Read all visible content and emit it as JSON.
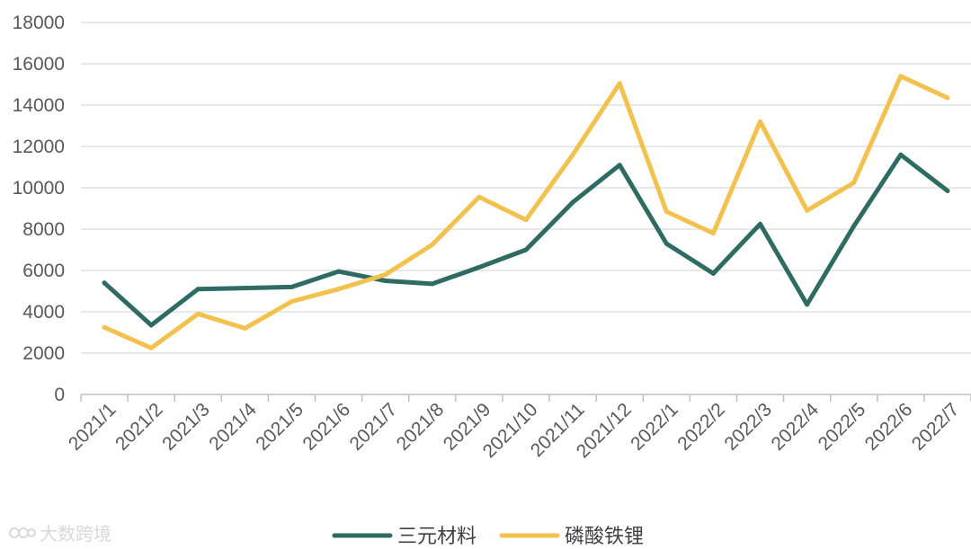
{
  "chart_data": {
    "type": "line",
    "title": "",
    "xlabel": "",
    "ylabel": "",
    "ylim": [
      0,
      18000
    ],
    "yticks": [
      0,
      2000,
      4000,
      6000,
      8000,
      10000,
      12000,
      14000,
      16000,
      18000
    ],
    "grid": true,
    "legend_position": "bottom",
    "categories": [
      "2021/1",
      "2021/2",
      "2021/3",
      "2021/4",
      "2021/5",
      "2021/6",
      "2021/7",
      "2021/8",
      "2021/9",
      "2021/10",
      "2021/11",
      "2021/12",
      "2022/1",
      "2022/2",
      "2022/3",
      "2022/4",
      "2022/5",
      "2022/6",
      "2022/7"
    ],
    "series": [
      {
        "name": "三元材料",
        "color": "#2e6b63",
        "values": [
          5400,
          3350,
          5100,
          5150,
          5200,
          5950,
          5500,
          5350,
          6150,
          7000,
          9300,
          11100,
          7300,
          5850,
          8250,
          4350,
          8150,
          11600,
          9850
        ]
      },
      {
        "name": "磷酸铁锂",
        "color": "#f2c14e",
        "values": [
          3250,
          2250,
          3900,
          3200,
          4500,
          5100,
          5800,
          7250,
          9550,
          8450,
          11600,
          15050,
          8850,
          7800,
          13200,
          8900,
          10250,
          15400,
          14350
        ]
      }
    ]
  },
  "watermark": {
    "text": "大数跨境",
    "icon": "brand-logo-icon"
  }
}
